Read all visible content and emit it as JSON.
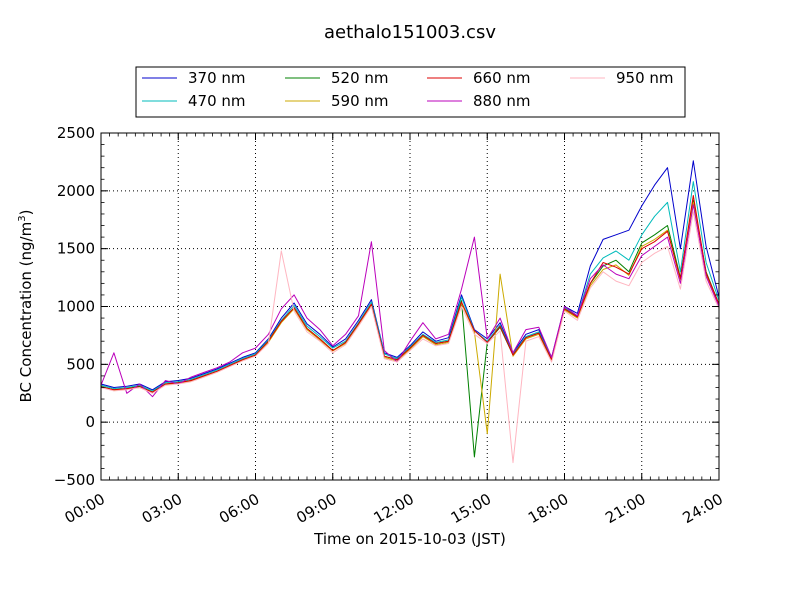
{
  "chart_data": {
    "type": "line",
    "title": "aethalo151003.csv",
    "xlabel": "Time on 2015-10-03 (JST)",
    "ylabel": "BC Concentration (ng/m",
    "ylabel_sup": "3",
    "ylabel_end": ")",
    "x_unit": "hours",
    "xlim": [
      0,
      24
    ],
    "ylim": [
      -500,
      2500
    ],
    "x_ticks": [
      0,
      3,
      6,
      9,
      12,
      15,
      18,
      21,
      24
    ],
    "x_tick_labels": [
      "00:00",
      "03:00",
      "06:00",
      "09:00",
      "12:00",
      "15:00",
      "18:00",
      "21:00",
      "24:00"
    ],
    "y_ticks": [
      -500,
      0,
      500,
      1000,
      1500,
      2000,
      2500
    ],
    "y_tick_labels": [
      "−500",
      "0",
      "500",
      "1000",
      "1500",
      "2000",
      "2500"
    ],
    "grid": true,
    "legend_position": "top",
    "series": [
      {
        "name": "370 nm",
        "color": "#0000cc",
        "x": [
          0,
          0.5,
          1,
          1.5,
          2,
          2.5,
          3,
          3.5,
          4,
          4.5,
          5,
          5.5,
          6,
          6.5,
          7,
          7.5,
          8,
          8.5,
          9,
          9.5,
          10,
          10.5,
          11,
          11.5,
          12,
          12.5,
          13,
          13.5,
          14,
          14.5,
          15,
          15.5,
          16,
          16.5,
          17,
          17.5,
          18,
          18.5,
          19,
          19.5,
          20,
          20.5,
          21,
          21.5,
          22,
          22.5,
          23,
          23.5,
          24
        ],
        "y": [
          330,
          300,
          310,
          330,
          280,
          350,
          360,
          380,
          420,
          460,
          510,
          560,
          600,
          720,
          900,
          1030,
          850,
          760,
          650,
          720,
          880,
          1060,
          600,
          560,
          660,
          780,
          700,
          730,
          1100,
          800,
          720,
          860,
          600,
          760,
          800,
          560,
          1000,
          940,
          1350,
          1580,
          1620,
          1660,
          1870,
          2050,
          2200,
          1500,
          2260,
          1520,
          1080
        ]
      },
      {
        "name": "470 nm",
        "color": "#00bbbb",
        "x": [
          0,
          0.5,
          1,
          1.5,
          2,
          2.5,
          3,
          3.5,
          4,
          4.5,
          5,
          5.5,
          6,
          6.5,
          7,
          7.5,
          8,
          8.5,
          9,
          9.5,
          10,
          10.5,
          11,
          11.5,
          12,
          12.5,
          13,
          13.5,
          14,
          14.5,
          15,
          15.5,
          16,
          16.5,
          17,
          17.5,
          18,
          18.5,
          19,
          19.5,
          20,
          20.5,
          21,
          21.5,
          22,
          22.5,
          23,
          23.5,
          24
        ],
        "y": [
          320,
          290,
          300,
          320,
          270,
          340,
          350,
          370,
          410,
          450,
          500,
          550,
          590,
          710,
          880,
          1010,
          830,
          740,
          640,
          700,
          860,
          1040,
          590,
          550,
          650,
          760,
          690,
          710,
          1080,
          790,
          700,
          840,
          590,
          740,
          780,
          550,
          990,
          920,
          1280,
          1420,
          1480,
          1400,
          1620,
          1780,
          1900,
          1300,
          2080,
          1380,
          1050
        ]
      },
      {
        "name": "520 nm",
        "color": "#008000",
        "x": [
          0,
          0.5,
          1,
          1.5,
          2,
          2.5,
          3,
          3.5,
          4,
          4.5,
          5,
          5.5,
          6,
          6.5,
          7,
          7.5,
          8,
          8.5,
          9,
          9.5,
          10,
          10.5,
          11,
          11.5,
          12,
          12.5,
          13,
          13.5,
          14,
          14.5,
          15,
          15.5,
          16,
          16.5,
          17,
          17.5,
          18,
          18.5,
          19,
          19.5,
          20,
          20.5,
          21,
          21.5,
          22,
          22.5,
          23,
          23.5,
          24
        ],
        "y": [
          310,
          280,
          290,
          310,
          260,
          330,
          340,
          360,
          400,
          440,
          490,
          540,
          580,
          700,
          870,
          990,
          810,
          720,
          620,
          690,
          850,
          1020,
          570,
          540,
          640,
          750,
          680,
          700,
          1050,
          -300,
          690,
          820,
          580,
          730,
          770,
          540,
          980,
          910,
          1200,
          1350,
          1400,
          1300,
          1550,
          1620,
          1700,
          1250,
          1920,
          1300,
          1020
        ]
      },
      {
        "name": "590 nm",
        "color": "#ccaa00",
        "x": [
          0,
          0.5,
          1,
          1.5,
          2,
          2.5,
          3,
          3.5,
          4,
          4.5,
          5,
          5.5,
          6,
          6.5,
          7,
          7.5,
          8,
          8.5,
          9,
          9.5,
          10,
          10.5,
          11,
          11.5,
          12,
          12.5,
          13,
          13.5,
          14,
          14.5,
          15,
          15.5,
          16,
          16.5,
          17,
          17.5,
          18,
          18.5,
          19,
          19.5,
          20,
          20.5,
          21,
          21.5,
          22,
          22.5,
          23,
          23.5,
          24
        ],
        "y": [
          300,
          275,
          285,
          300,
          255,
          325,
          335,
          355,
          395,
          435,
          485,
          535,
          575,
          690,
          860,
          980,
          800,
          710,
          615,
          680,
          840,
          1010,
          560,
          530,
          630,
          740,
          670,
          690,
          1030,
          780,
          -100,
          1280,
          570,
          720,
          760,
          530,
          970,
          900,
          1180,
          1320,
          1360,
          1270,
          1520,
          1580,
          1660,
          1230,
          1900,
          1280,
          1010
        ]
      },
      {
        "name": "660 nm",
        "color": "#dd0000",
        "x": [
          0,
          0.5,
          1,
          1.5,
          2,
          2.5,
          3,
          3.5,
          4,
          4.5,
          5,
          5.5,
          6,
          6.5,
          7,
          7.5,
          8,
          8.5,
          9,
          9.5,
          10,
          10.5,
          11,
          11.5,
          12,
          12.5,
          13,
          13.5,
          14,
          14.5,
          15,
          15.5,
          16,
          16.5,
          17,
          17.5,
          18,
          18.5,
          19,
          19.5,
          20,
          20.5,
          21,
          21.5,
          22,
          22.5,
          23,
          23.5,
          24
        ],
        "y": [
          305,
          280,
          290,
          305,
          260,
          330,
          340,
          360,
          400,
          440,
          490,
          540,
          580,
          700,
          870,
          990,
          810,
          720,
          620,
          690,
          850,
          1020,
          570,
          540,
          640,
          750,
          680,
          700,
          1040,
          790,
          690,
          830,
          580,
          730,
          770,
          540,
          980,
          910,
          1200,
          1380,
          1340,
          1280,
          1500,
          1560,
          1650,
          1240,
          1960,
          1290,
          1020
        ]
      },
      {
        "name": "880 nm",
        "color": "#bb00bb",
        "x": [
          0,
          0.5,
          1,
          1.5,
          2,
          2.5,
          3,
          3.5,
          4,
          4.5,
          5,
          5.5,
          6,
          6.5,
          7,
          7.5,
          8,
          8.5,
          9,
          9.5,
          10,
          10.5,
          11,
          11.5,
          12,
          12.5,
          13,
          13.5,
          14,
          14.5,
          15,
          15.5,
          16,
          16.5,
          17,
          17.5,
          18,
          18.5,
          19,
          19.5,
          20,
          20.5,
          21,
          21.5,
          22,
          22.5,
          23,
          23.5,
          24
        ],
        "y": [
          320,
          600,
          250,
          330,
          220,
          360,
          330,
          390,
          430,
          470,
          520,
          600,
          640,
          760,
          980,
          1100,
          900,
          800,
          660,
          760,
          920,
          1560,
          620,
          520,
          700,
          860,
          720,
          760,
          1150,
          1600,
          720,
          900,
          600,
          800,
          820,
          560,
          1000,
          920,
          1240,
          1360,
          1280,
          1240,
          1440,
          1520,
          1600,
          1200,
          1880,
          1260,
          1000
        ]
      },
      {
        "name": "950 nm",
        "color": "#ffb6c1",
        "x": [
          0,
          0.5,
          1,
          1.5,
          2,
          2.5,
          3,
          3.5,
          4,
          4.5,
          5,
          5.5,
          6,
          6.5,
          7,
          7.5,
          8,
          8.5,
          9,
          9.5,
          10,
          10.5,
          11,
          11.5,
          12,
          12.5,
          13,
          13.5,
          14,
          14.5,
          15,
          15.5,
          16,
          16.5,
          17,
          17.5,
          18,
          18.5,
          19,
          19.5,
          20,
          20.5,
          21,
          21.5,
          22,
          22.5,
          23,
          23.5,
          24
        ],
        "y": [
          300,
          270,
          280,
          300,
          250,
          320,
          330,
          350,
          390,
          430,
          480,
          530,
          570,
          680,
          1480,
          960,
          780,
          700,
          600,
          670,
          830,
          1000,
          550,
          520,
          620,
          720,
          660,
          680,
          1000,
          760,
          680,
          790,
          -350,
          700,
          740,
          520,
          960,
          880,
          1160,
          1300,
          1220,
          1180,
          1380,
          1460,
          1520,
          1150,
          1820,
          1220,
          980
        ]
      }
    ]
  }
}
